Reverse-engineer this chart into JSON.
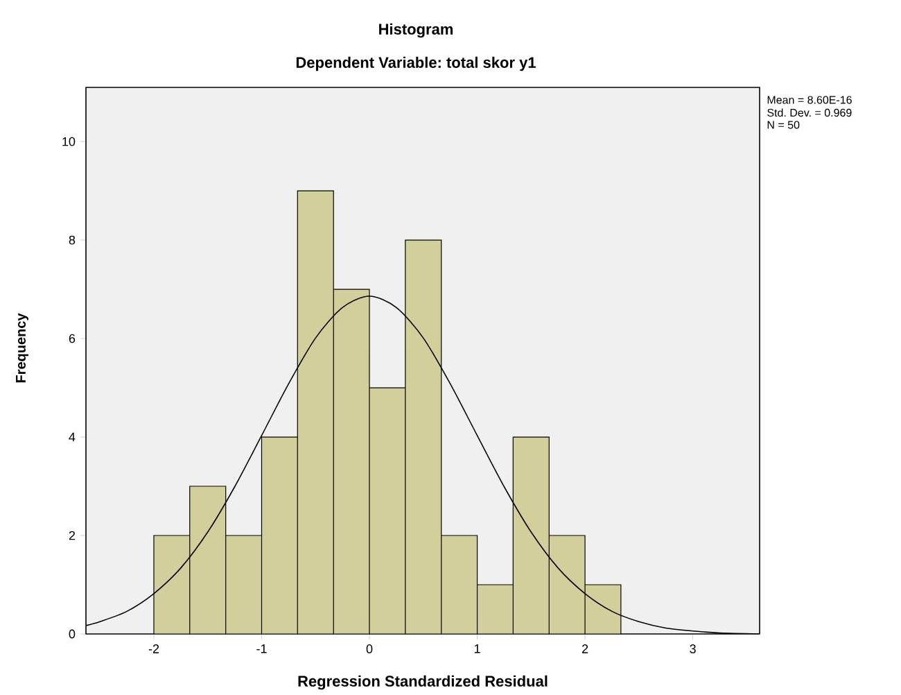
{
  "chart_data": {
    "type": "histogram",
    "title": "Histogram",
    "subtitle": "Dependent Variable: total skor y1",
    "xlabel": "Regression Standardized Residual",
    "ylabel": "Frequency",
    "annotations": [
      "Mean = 8.60E-16",
      "Std. Dev. = 0.969",
      "N = 50"
    ],
    "xlim": [
      -2.63,
      3.62
    ],
    "ylim": [
      0,
      11.1
    ],
    "xticks": [
      -2,
      -1,
      0,
      1,
      2,
      3
    ],
    "yticks": [
      0,
      2,
      4,
      6,
      8,
      10
    ],
    "grid": false,
    "series": [
      {
        "color": "#d3cf9b",
        "bins": [
          -2,
          -1.667,
          -1.333,
          -1,
          -0.667,
          -0.333,
          0,
          0.333,
          0.667,
          1,
          1.333,
          1.667,
          2,
          2.333
        ],
        "values": [
          2,
          3,
          2,
          4,
          9,
          7,
          5,
          8,
          2,
          1,
          4,
          2,
          1
        ]
      },
      {
        "type": "line",
        "color": "#000000",
        "x": [
          -2.63,
          -2.5,
          -2.25,
          -2,
          -1.75,
          -1.5,
          -1.25,
          -1,
          -0.75,
          -0.5,
          -0.25,
          0,
          0.25,
          0.5,
          0.75,
          1,
          1.25,
          1.5,
          1.75,
          2,
          2.25,
          2.5,
          2.75,
          3,
          3.25,
          3.62
        ],
        "values": [
          0.17,
          0.25,
          0.46,
          0.82,
          1.34,
          2.07,
          2.99,
          4.03,
          5.08,
          6.01,
          6.63,
          6.86,
          6.63,
          6.01,
          5.08,
          4.03,
          2.99,
          2.07,
          1.34,
          0.82,
          0.46,
          0.25,
          0.12,
          0.06,
          0.02,
          0.0
        ]
      }
    ]
  }
}
